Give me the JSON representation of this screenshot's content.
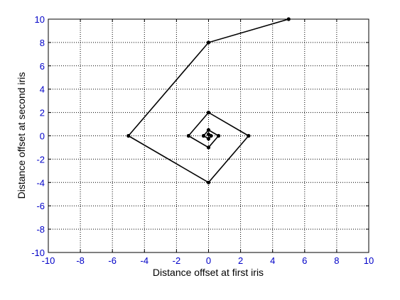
{
  "chart_data": {
    "type": "line",
    "title": "",
    "xlabel": "Distance offset at first iris",
    "ylabel": "Distance offset at second iris",
    "xlim": [
      -10,
      10
    ],
    "ylim": [
      -10,
      10
    ],
    "xticks": [
      -10,
      -8,
      -6,
      -4,
      -2,
      0,
      2,
      4,
      6,
      8,
      10
    ],
    "yticks": [
      -10,
      -8,
      -6,
      -4,
      -2,
      0,
      2,
      4,
      6,
      8,
      10
    ],
    "grid": true,
    "grid_style": "dotted",
    "series": [
      {
        "marker": "dot",
        "color": "#000000",
        "x": [
          5,
          0,
          -5,
          0,
          2.5,
          0,
          -1.25,
          0,
          0.625,
          0,
          -0.3125,
          0,
          0.15625,
          0
        ],
        "y": [
          10,
          8,
          0,
          -4,
          0,
          2,
          0,
          -1,
          0,
          0.5,
          0,
          -0.25,
          0,
          0.125
        ]
      }
    ]
  },
  "colors": {
    "line": "#000000",
    "tick_label": "#0000c8",
    "grid": "#000000",
    "background": "#ffffff"
  }
}
